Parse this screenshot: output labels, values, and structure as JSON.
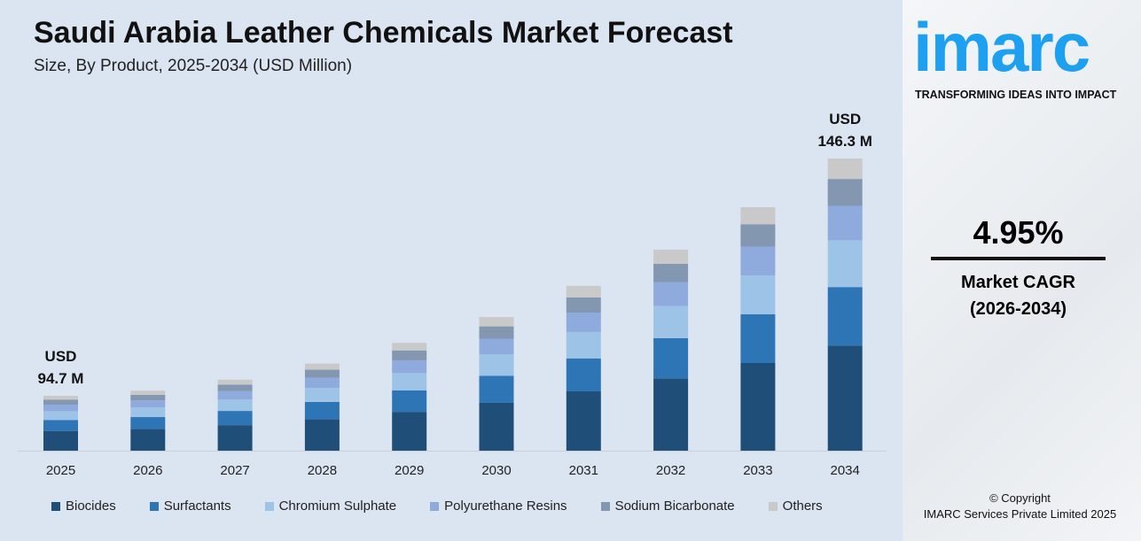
{
  "chart_data": {
    "type": "bar",
    "stacked": true,
    "title": "Saudi Arabia Leather Chemicals Market Forecast",
    "subtitle": "Size, By Product, 2025-2034 (USD Million)",
    "categories": [
      "2025",
      "2026",
      "2027",
      "2028",
      "2029",
      "2030",
      "2031",
      "2032",
      "2033",
      "2034"
    ],
    "totals": [
      94.7,
      99.4,
      104.3,
      109.5,
      114.9,
      120.6,
      126.6,
      132.8,
      139.4,
      146.3
    ],
    "series": [
      {
        "name": "Biocides",
        "color": "#1f4e79",
        "share": 0.36
      },
      {
        "name": "Surfactants",
        "color": "#2e75b6",
        "share": 0.2
      },
      {
        "name": "Chromium Sulphate",
        "color": "#9dc3e6",
        "share": 0.16
      },
      {
        "name": "Polyurethane Resins",
        "color": "#8faadc",
        "share": 0.118
      },
      {
        "name": "Sodium Bicarbonate",
        "color": "#8497b0",
        "share": 0.092
      },
      {
        "name": "Others",
        "color": "#c9c9c9",
        "share": 0.07
      }
    ],
    "annotations": {
      "first_usd": "USD",
      "first_value": "94.7 M",
      "last_usd": "USD",
      "last_value": "146.3 M"
    },
    "ylim": [
      80,
      146.3
    ],
    "legend": "bottom",
    "grid": false
  },
  "brand": {
    "logo": "imarc",
    "tagline": "TRANSFORMING IDEAS INTO IMPACT"
  },
  "cagr": {
    "value": "4.95%",
    "label": "Market CAGR",
    "period": "(2026-2034)"
  },
  "footer": {
    "copyright": "© Copyright",
    "company": "IMARC Services Private Limited 2025"
  }
}
